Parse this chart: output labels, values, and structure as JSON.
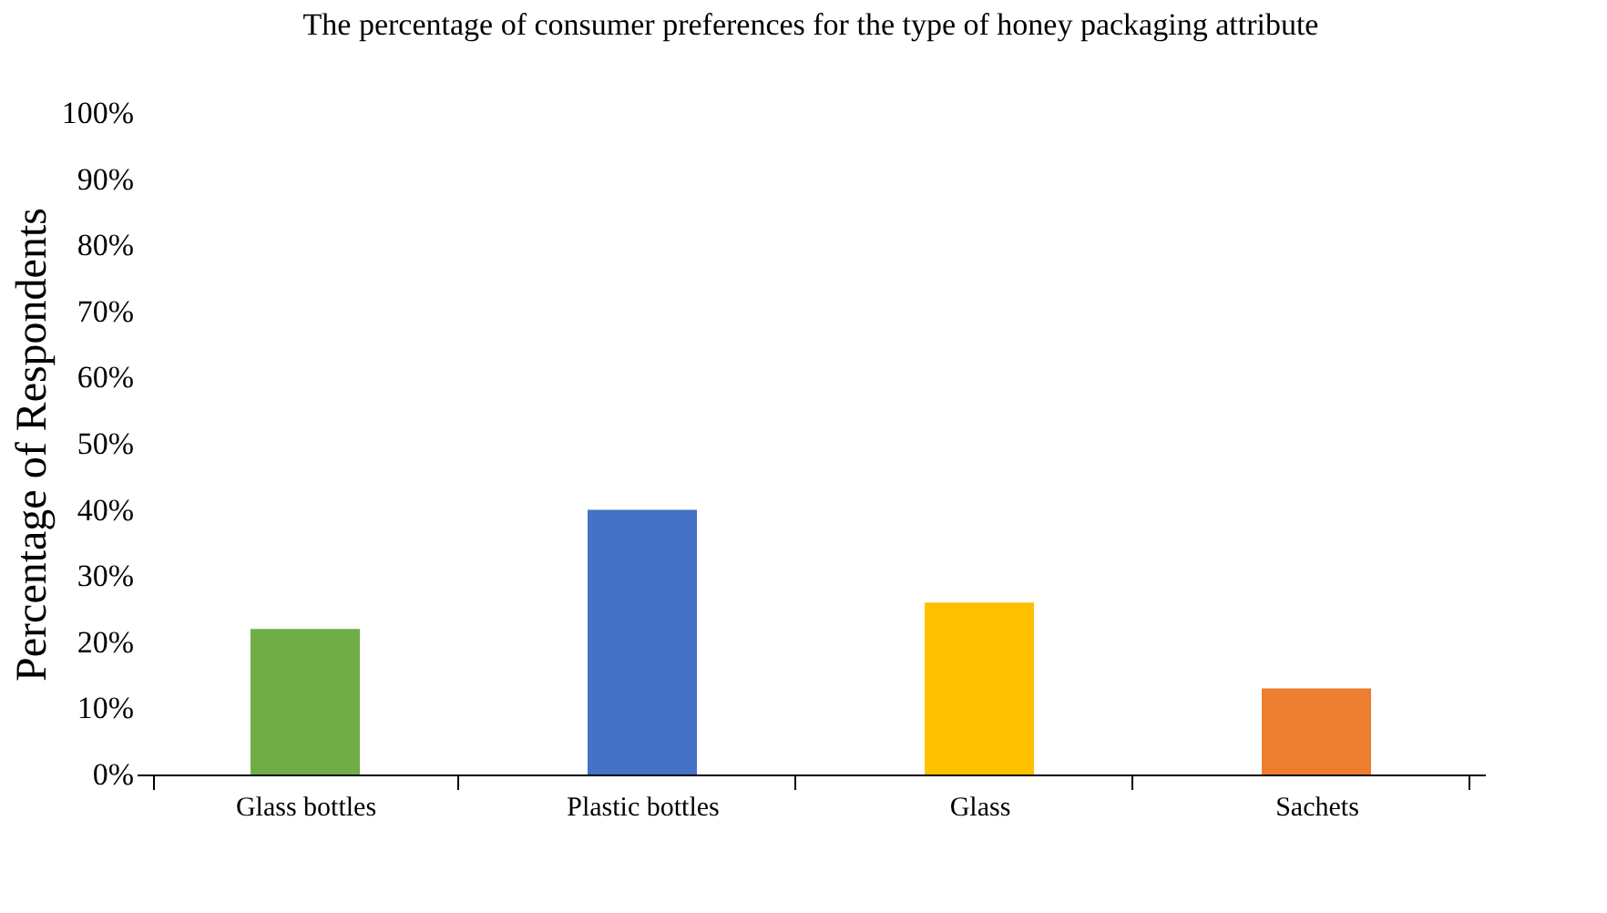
{
  "chart_data": {
    "type": "bar",
    "title": "The percentage of consumer preferences for the type of honey packaging attribute",
    "ylabel": "Percentage of Respondents",
    "categories": [
      "Glass bottles",
      "Plastic bottles",
      "Glass",
      "Sachets"
    ],
    "values": [
      22,
      40,
      26,
      13
    ],
    "colors": [
      "#70ad47",
      "#4472c4",
      "#ffc000",
      "#ed7d31"
    ],
    "ylim": [
      0,
      100
    ],
    "yticks": [
      {
        "value": 0,
        "label": "0%"
      },
      {
        "value": 10,
        "label": "10%"
      },
      {
        "value": 20,
        "label": "20%"
      },
      {
        "value": 30,
        "label": "30%"
      },
      {
        "value": 40,
        "label": "40%"
      },
      {
        "value": 50,
        "label": "50%"
      },
      {
        "value": 60,
        "label": "60%"
      },
      {
        "value": 70,
        "label": "70%"
      },
      {
        "value": 80,
        "label": "80%"
      },
      {
        "value": 90,
        "label": "90%"
      },
      {
        "value": 100,
        "label": "100%"
      }
    ],
    "grid": false
  }
}
